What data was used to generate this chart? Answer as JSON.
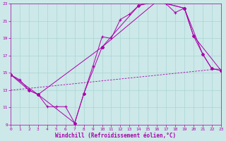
{
  "xlabel": "Windchill (Refroidissement éolien,°C)",
  "bg_color": "#cce8e8",
  "grid_color": "#aad4d4",
  "line_color": "#aa00aa",
  "xmin": 0,
  "xmax": 23,
  "ymin": 9,
  "ymax": 23,
  "yticks": [
    9,
    11,
    13,
    15,
    17,
    19,
    21,
    23
  ],
  "xticks": [
    0,
    1,
    2,
    3,
    4,
    5,
    6,
    7,
    8,
    9,
    10,
    11,
    12,
    13,
    14,
    15,
    16,
    17,
    18,
    19,
    20,
    21,
    22,
    23
  ],
  "series1_x": [
    0,
    1,
    2,
    3,
    4,
    5,
    6,
    7,
    8,
    9,
    10,
    11,
    12,
    13,
    14,
    15,
    16,
    17,
    18,
    19,
    20,
    21,
    22,
    23
  ],
  "series1_y": [
    14.8,
    14.2,
    13.0,
    12.5,
    11.1,
    11.1,
    11.1,
    9.2,
    12.6,
    15.8,
    19.2,
    19.0,
    21.2,
    21.8,
    22.8,
    23.2,
    23.3,
    23.0,
    22.0,
    22.5,
    19.3,
    17.2,
    15.5,
    15.3
  ],
  "series2_x": [
    0,
    3,
    7,
    8,
    10,
    14,
    16,
    19,
    21,
    22,
    23
  ],
  "series2_y": [
    14.8,
    12.5,
    9.2,
    12.6,
    18.0,
    22.8,
    23.3,
    22.5,
    17.2,
    15.5,
    15.3
  ],
  "series3_x": [
    0,
    2,
    3,
    10,
    16,
    19,
    20,
    23
  ],
  "series3_y": [
    14.8,
    13.0,
    12.5,
    18.0,
    23.3,
    22.5,
    19.3,
    15.3
  ],
  "series4_x": [
    0,
    23
  ],
  "series4_y": [
    13.0,
    15.5
  ]
}
